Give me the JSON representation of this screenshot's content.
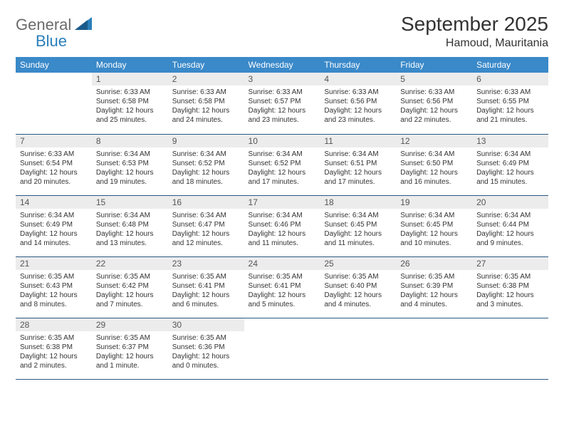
{
  "logo": {
    "word1": "General",
    "word2": "Blue"
  },
  "title": "September 2025",
  "location": "Hamoud, Mauritania",
  "colors": {
    "header_bg": "#3a89c9",
    "header_text": "#ffffff",
    "daynum_bg": "#ececec",
    "daynum_text": "#555555",
    "body_text": "#333333",
    "row_border": "#2b5a85",
    "logo_gray": "#6b6b6b",
    "logo_blue": "#2a7fba"
  },
  "weekdays": [
    "Sunday",
    "Monday",
    "Tuesday",
    "Wednesday",
    "Thursday",
    "Friday",
    "Saturday"
  ],
  "weeks": [
    [
      {
        "n": "",
        "sr": "",
        "ss": "",
        "dl": ""
      },
      {
        "n": "1",
        "sr": "Sunrise: 6:33 AM",
        "ss": "Sunset: 6:58 PM",
        "dl": "Daylight: 12 hours and 25 minutes."
      },
      {
        "n": "2",
        "sr": "Sunrise: 6:33 AM",
        "ss": "Sunset: 6:58 PM",
        "dl": "Daylight: 12 hours and 24 minutes."
      },
      {
        "n": "3",
        "sr": "Sunrise: 6:33 AM",
        "ss": "Sunset: 6:57 PM",
        "dl": "Daylight: 12 hours and 23 minutes."
      },
      {
        "n": "4",
        "sr": "Sunrise: 6:33 AM",
        "ss": "Sunset: 6:56 PM",
        "dl": "Daylight: 12 hours and 23 minutes."
      },
      {
        "n": "5",
        "sr": "Sunrise: 6:33 AM",
        "ss": "Sunset: 6:56 PM",
        "dl": "Daylight: 12 hours and 22 minutes."
      },
      {
        "n": "6",
        "sr": "Sunrise: 6:33 AM",
        "ss": "Sunset: 6:55 PM",
        "dl": "Daylight: 12 hours and 21 minutes."
      }
    ],
    [
      {
        "n": "7",
        "sr": "Sunrise: 6:33 AM",
        "ss": "Sunset: 6:54 PM",
        "dl": "Daylight: 12 hours and 20 minutes."
      },
      {
        "n": "8",
        "sr": "Sunrise: 6:34 AM",
        "ss": "Sunset: 6:53 PM",
        "dl": "Daylight: 12 hours and 19 minutes."
      },
      {
        "n": "9",
        "sr": "Sunrise: 6:34 AM",
        "ss": "Sunset: 6:52 PM",
        "dl": "Daylight: 12 hours and 18 minutes."
      },
      {
        "n": "10",
        "sr": "Sunrise: 6:34 AM",
        "ss": "Sunset: 6:52 PM",
        "dl": "Daylight: 12 hours and 17 minutes."
      },
      {
        "n": "11",
        "sr": "Sunrise: 6:34 AM",
        "ss": "Sunset: 6:51 PM",
        "dl": "Daylight: 12 hours and 17 minutes."
      },
      {
        "n": "12",
        "sr": "Sunrise: 6:34 AM",
        "ss": "Sunset: 6:50 PM",
        "dl": "Daylight: 12 hours and 16 minutes."
      },
      {
        "n": "13",
        "sr": "Sunrise: 6:34 AM",
        "ss": "Sunset: 6:49 PM",
        "dl": "Daylight: 12 hours and 15 minutes."
      }
    ],
    [
      {
        "n": "14",
        "sr": "Sunrise: 6:34 AM",
        "ss": "Sunset: 6:49 PM",
        "dl": "Daylight: 12 hours and 14 minutes."
      },
      {
        "n": "15",
        "sr": "Sunrise: 6:34 AM",
        "ss": "Sunset: 6:48 PM",
        "dl": "Daylight: 12 hours and 13 minutes."
      },
      {
        "n": "16",
        "sr": "Sunrise: 6:34 AM",
        "ss": "Sunset: 6:47 PM",
        "dl": "Daylight: 12 hours and 12 minutes."
      },
      {
        "n": "17",
        "sr": "Sunrise: 6:34 AM",
        "ss": "Sunset: 6:46 PM",
        "dl": "Daylight: 12 hours and 11 minutes."
      },
      {
        "n": "18",
        "sr": "Sunrise: 6:34 AM",
        "ss": "Sunset: 6:45 PM",
        "dl": "Daylight: 12 hours and 11 minutes."
      },
      {
        "n": "19",
        "sr": "Sunrise: 6:34 AM",
        "ss": "Sunset: 6:45 PM",
        "dl": "Daylight: 12 hours and 10 minutes."
      },
      {
        "n": "20",
        "sr": "Sunrise: 6:34 AM",
        "ss": "Sunset: 6:44 PM",
        "dl": "Daylight: 12 hours and 9 minutes."
      }
    ],
    [
      {
        "n": "21",
        "sr": "Sunrise: 6:35 AM",
        "ss": "Sunset: 6:43 PM",
        "dl": "Daylight: 12 hours and 8 minutes."
      },
      {
        "n": "22",
        "sr": "Sunrise: 6:35 AM",
        "ss": "Sunset: 6:42 PM",
        "dl": "Daylight: 12 hours and 7 minutes."
      },
      {
        "n": "23",
        "sr": "Sunrise: 6:35 AM",
        "ss": "Sunset: 6:41 PM",
        "dl": "Daylight: 12 hours and 6 minutes."
      },
      {
        "n": "24",
        "sr": "Sunrise: 6:35 AM",
        "ss": "Sunset: 6:41 PM",
        "dl": "Daylight: 12 hours and 5 minutes."
      },
      {
        "n": "25",
        "sr": "Sunrise: 6:35 AM",
        "ss": "Sunset: 6:40 PM",
        "dl": "Daylight: 12 hours and 4 minutes."
      },
      {
        "n": "26",
        "sr": "Sunrise: 6:35 AM",
        "ss": "Sunset: 6:39 PM",
        "dl": "Daylight: 12 hours and 4 minutes."
      },
      {
        "n": "27",
        "sr": "Sunrise: 6:35 AM",
        "ss": "Sunset: 6:38 PM",
        "dl": "Daylight: 12 hours and 3 minutes."
      }
    ],
    [
      {
        "n": "28",
        "sr": "Sunrise: 6:35 AM",
        "ss": "Sunset: 6:38 PM",
        "dl": "Daylight: 12 hours and 2 minutes."
      },
      {
        "n": "29",
        "sr": "Sunrise: 6:35 AM",
        "ss": "Sunset: 6:37 PM",
        "dl": "Daylight: 12 hours and 1 minute."
      },
      {
        "n": "30",
        "sr": "Sunrise: 6:35 AM",
        "ss": "Sunset: 6:36 PM",
        "dl": "Daylight: 12 hours and 0 minutes."
      },
      {
        "n": "",
        "sr": "",
        "ss": "",
        "dl": ""
      },
      {
        "n": "",
        "sr": "",
        "ss": "",
        "dl": ""
      },
      {
        "n": "",
        "sr": "",
        "ss": "",
        "dl": ""
      },
      {
        "n": "",
        "sr": "",
        "ss": "",
        "dl": ""
      }
    ]
  ]
}
